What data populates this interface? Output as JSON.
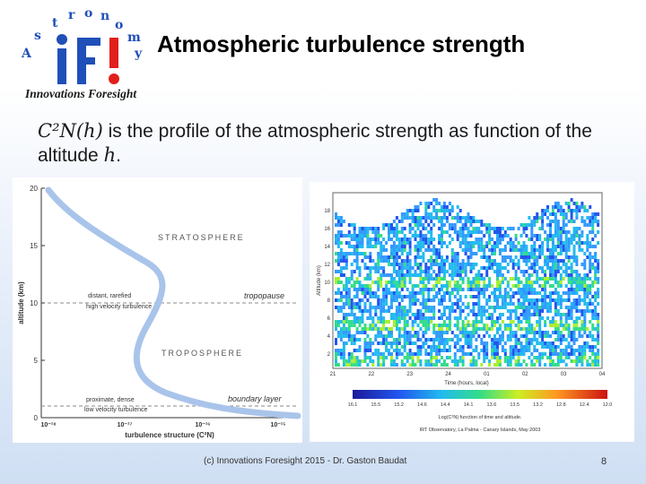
{
  "header": {
    "logo_arc_letters": [
      "A",
      "s",
      "t",
      "r",
      "o",
      "n",
      "o",
      "m",
      "y"
    ],
    "logo_mark": "iFi",
    "tagline": "Innovations Foresight",
    "title": "Atmospheric turbulence strength"
  },
  "statement": {
    "symbol": "C²N(h)",
    "text": " is the profile of the atmospheric strength as function of the altitude ",
    "var": "h",
    "end": "."
  },
  "colors": {
    "accent_blue": "#1f4fb8",
    "logo_red": "#e0201b",
    "curve_blue": "#a9c4ea"
  },
  "left_chart": {
    "ylabel": "altitude (km)",
    "xlabel": "turbulence structure (C²N)",
    "yticks": [
      "0",
      "5",
      "10",
      "15",
      "20"
    ],
    "xticks": [
      "10⁻¹⁸",
      "10⁻¹⁷",
      "10⁻¹⁶",
      "10⁻¹⁵"
    ],
    "labels": {
      "stratosphere": "STRATOSPHERE",
      "troposphere": "TROPOSPHERE",
      "tropopause": "tropopause",
      "boundary_layer": "boundary layer",
      "distant_1": "distant, rarefied",
      "distant_2": "high velocity turbulence",
      "prox_1": "proximate, dense",
      "prox_2": "low velocity turbulence"
    }
  },
  "right_chart": {
    "ylabel": "Altitude (km)",
    "yticks": [
      "18",
      "16",
      "14",
      "12",
      "10",
      "8",
      "6",
      "4",
      "2"
    ],
    "xticks": [
      "21",
      "22",
      "23",
      "24",
      "01",
      "02",
      "03",
      "04"
    ],
    "xlabel": "Time (hours, local)",
    "colorbar_ticks": [
      "16.1",
      "15.5",
      "15.2",
      "14.6",
      "14.4",
      "14.1",
      "13.6",
      "13.5",
      "13.2",
      "12.8",
      "12.4",
      "12.0"
    ],
    "caption_1": "Log(C²N) function of time and altitude.",
    "caption_2": "IRT Observatory, La Palma - Canary Islands, May 2003"
  },
  "footer": {
    "text": "(c) Innovations Foresight 2015  - Dr. Gaston  Baudat",
    "page": "8"
  }
}
